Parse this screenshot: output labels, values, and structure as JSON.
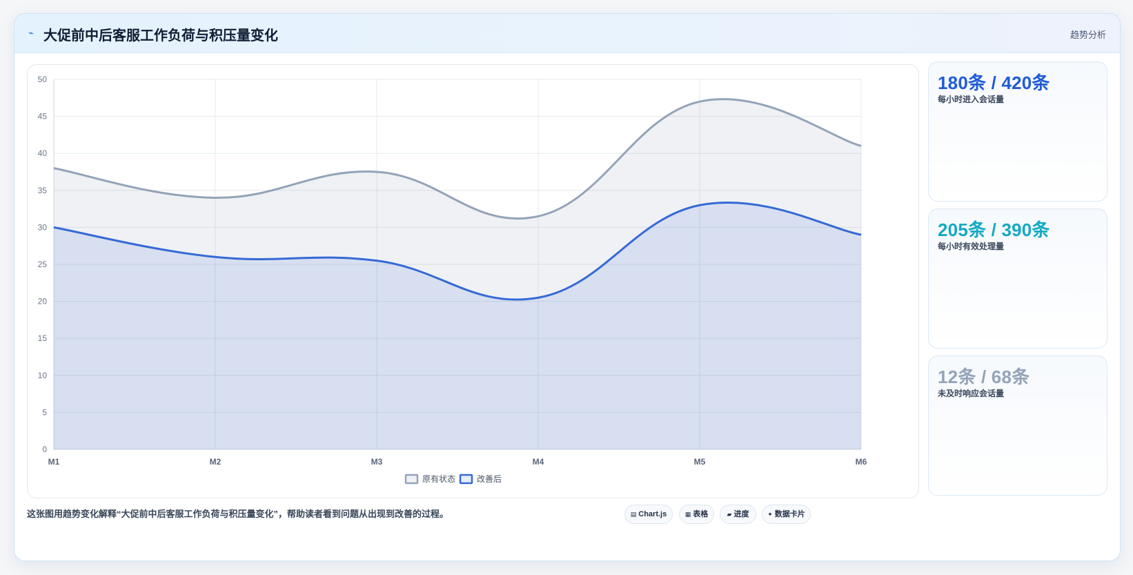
{
  "header": {
    "icon": "⌁",
    "title": "大促前中后客服工作负荷与积压量变化",
    "tag": "趋势分析"
  },
  "chart_data": {
    "type": "area",
    "x": [
      "M1",
      "M2",
      "M3",
      "M4",
      "M5",
      "M6"
    ],
    "ylim": [
      0,
      50
    ],
    "yticks": [
      0,
      5,
      10,
      15,
      20,
      25,
      30,
      35,
      40,
      45,
      50
    ],
    "grid": true,
    "legend_position": "bottom",
    "series": [
      {
        "name": "原有状态",
        "values": [
          38,
          34,
          37.5,
          31.5,
          47,
          41
        ],
        "color": "#94a3b8",
        "fill": "rgba(148,163,184,0.15)"
      },
      {
        "name": "改善后",
        "values": [
          30,
          26,
          25.5,
          20.5,
          33,
          29
        ],
        "color": "#3569d6",
        "fill": "rgba(53,105,214,0.13)"
      }
    ]
  },
  "stats": [
    {
      "value": "180条 / 420条",
      "label": "每小时进入会话量",
      "color": "#1f5bd6"
    },
    {
      "value": "205条 / 390条",
      "label": "每小时有效处理量",
      "color": "#14a9c4"
    },
    {
      "value": "12条 / 68条",
      "label": "未及时响应会话量",
      "color": "#94a3b8"
    }
  ],
  "footnote": "这张图用趋势变化解释“大促前中后客服工作负荷与积压量变化”，帮助读者看到问题从出现到改善的过程。",
  "pills": [
    {
      "icon": "▤",
      "label": "Chart.js"
    },
    {
      "icon": "▦",
      "label": "表格"
    },
    {
      "icon": "▰",
      "label": "进度"
    },
    {
      "icon": "✦",
      "label": "数据卡片"
    }
  ]
}
